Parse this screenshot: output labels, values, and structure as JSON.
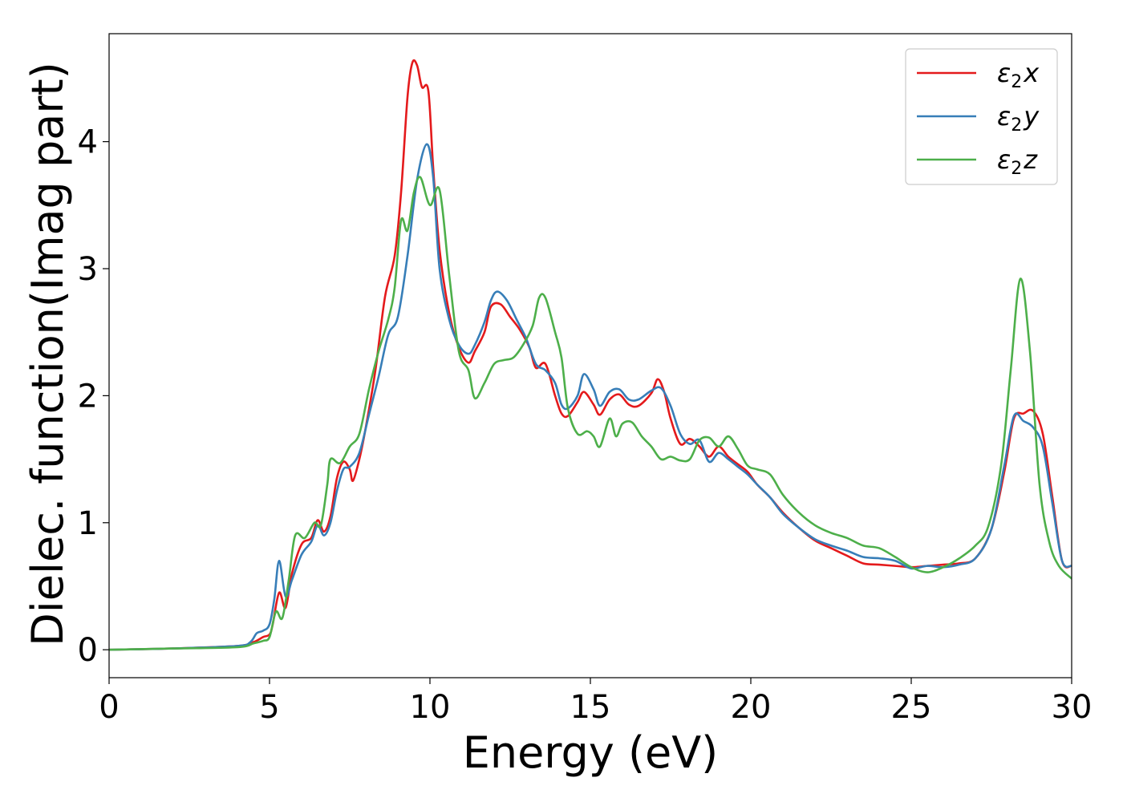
{
  "chart_data": {
    "type": "line",
    "xlabel": "Energy (eV)",
    "ylabel": "Dielec. function(Imag part)",
    "xlim": [
      0,
      30
    ],
    "ylim": [
      -0.22,
      4.85
    ],
    "x_ticks": [
      0,
      5,
      10,
      15,
      20,
      25,
      30
    ],
    "y_ticks": [
      0,
      1,
      2,
      3,
      4
    ],
    "grid": false,
    "legend_position": "top-right",
    "colors": {
      "x": "#e41a1c",
      "y": "#377eb8",
      "z": "#4daf4a"
    },
    "series": [
      {
        "name_symbol": "ε",
        "name_sub": "2",
        "name_suffix": "x",
        "color": "#e41a1c",
        "points": [
          [
            0,
            0
          ],
          [
            2,
            0.01
          ],
          [
            4,
            0.03
          ],
          [
            4.5,
            0.06
          ],
          [
            4.8,
            0.1
          ],
          [
            5.0,
            0.12
          ],
          [
            5.1,
            0.2
          ],
          [
            5.3,
            0.45
          ],
          [
            5.5,
            0.33
          ],
          [
            5.7,
            0.6
          ],
          [
            6.0,
            0.83
          ],
          [
            6.3,
            0.88
          ],
          [
            6.5,
            1.02
          ],
          [
            6.7,
            0.93
          ],
          [
            6.9,
            1.05
          ],
          [
            7.1,
            1.35
          ],
          [
            7.3,
            1.48
          ],
          [
            7.5,
            1.42
          ],
          [
            7.6,
            1.33
          ],
          [
            7.8,
            1.5
          ],
          [
            8.0,
            1.75
          ],
          [
            8.3,
            2.2
          ],
          [
            8.6,
            2.78
          ],
          [
            8.9,
            3.1
          ],
          [
            9.1,
            3.6
          ],
          [
            9.3,
            4.35
          ],
          [
            9.45,
            4.62
          ],
          [
            9.6,
            4.6
          ],
          [
            9.75,
            4.43
          ],
          [
            9.95,
            4.4
          ],
          [
            10.1,
            3.8
          ],
          [
            10.3,
            3.15
          ],
          [
            10.6,
            2.65
          ],
          [
            10.9,
            2.38
          ],
          [
            11.2,
            2.26
          ],
          [
            11.4,
            2.35
          ],
          [
            11.7,
            2.5
          ],
          [
            11.9,
            2.7
          ],
          [
            12.2,
            2.72
          ],
          [
            12.5,
            2.62
          ],
          [
            12.8,
            2.52
          ],
          [
            13.1,
            2.38
          ],
          [
            13.3,
            2.22
          ],
          [
            13.6,
            2.25
          ],
          [
            13.9,
            2.0
          ],
          [
            14.1,
            1.86
          ],
          [
            14.3,
            1.84
          ],
          [
            14.6,
            1.95
          ],
          [
            14.8,
            2.03
          ],
          [
            15.1,
            1.93
          ],
          [
            15.3,
            1.85
          ],
          [
            15.6,
            1.97
          ],
          [
            15.9,
            2.01
          ],
          [
            16.2,
            1.93
          ],
          [
            16.5,
            1.92
          ],
          [
            16.9,
            2.02
          ],
          [
            17.1,
            2.13
          ],
          [
            17.3,
            2.03
          ],
          [
            17.5,
            1.82
          ],
          [
            17.8,
            1.62
          ],
          [
            18.1,
            1.66
          ],
          [
            18.4,
            1.6
          ],
          [
            18.7,
            1.52
          ],
          [
            19.0,
            1.6
          ],
          [
            19.3,
            1.52
          ],
          [
            19.6,
            1.46
          ],
          [
            19.9,
            1.4
          ],
          [
            20.2,
            1.3
          ],
          [
            20.6,
            1.2
          ],
          [
            21.0,
            1.08
          ],
          [
            21.5,
            0.96
          ],
          [
            22.0,
            0.86
          ],
          [
            22.5,
            0.8
          ],
          [
            23.0,
            0.74
          ],
          [
            23.5,
            0.68
          ],
          [
            24.0,
            0.67
          ],
          [
            24.5,
            0.66
          ],
          [
            25.0,
            0.65
          ],
          [
            25.5,
            0.66
          ],
          [
            26.0,
            0.67
          ],
          [
            26.5,
            0.68
          ],
          [
            27.0,
            0.72
          ],
          [
            27.5,
            0.95
          ],
          [
            27.9,
            1.4
          ],
          [
            28.2,
            1.82
          ],
          [
            28.5,
            1.86
          ],
          [
            28.8,
            1.88
          ],
          [
            29.1,
            1.7
          ],
          [
            29.4,
            1.2
          ],
          [
            29.7,
            0.7
          ],
          [
            30.0,
            0.66
          ]
        ]
      },
      {
        "name_symbol": "ε",
        "name_sub": "2",
        "name_suffix": "y",
        "color": "#377eb8",
        "points": [
          [
            0,
            0
          ],
          [
            2,
            0.01
          ],
          [
            4,
            0.03
          ],
          [
            4.4,
            0.06
          ],
          [
            4.6,
            0.13
          ],
          [
            4.8,
            0.15
          ],
          [
            5.0,
            0.2
          ],
          [
            5.15,
            0.4
          ],
          [
            5.3,
            0.7
          ],
          [
            5.5,
            0.42
          ],
          [
            5.7,
            0.55
          ],
          [
            6.0,
            0.75
          ],
          [
            6.3,
            0.85
          ],
          [
            6.5,
            0.98
          ],
          [
            6.7,
            0.9
          ],
          [
            6.9,
            1.0
          ],
          [
            7.1,
            1.25
          ],
          [
            7.3,
            1.42
          ],
          [
            7.5,
            1.44
          ],
          [
            7.8,
            1.55
          ],
          [
            8.1,
            1.85
          ],
          [
            8.4,
            2.15
          ],
          [
            8.7,
            2.48
          ],
          [
            9.0,
            2.62
          ],
          [
            9.3,
            3.1
          ],
          [
            9.6,
            3.7
          ],
          [
            9.9,
            3.98
          ],
          [
            10.1,
            3.72
          ],
          [
            10.3,
            3.0
          ],
          [
            10.6,
            2.6
          ],
          [
            10.9,
            2.4
          ],
          [
            11.2,
            2.33
          ],
          [
            11.4,
            2.4
          ],
          [
            11.7,
            2.58
          ],
          [
            11.9,
            2.75
          ],
          [
            12.1,
            2.82
          ],
          [
            12.4,
            2.75
          ],
          [
            12.7,
            2.6
          ],
          [
            13.0,
            2.45
          ],
          [
            13.3,
            2.25
          ],
          [
            13.6,
            2.2
          ],
          [
            13.9,
            2.1
          ],
          [
            14.1,
            1.93
          ],
          [
            14.3,
            1.9
          ],
          [
            14.6,
            2.0
          ],
          [
            14.8,
            2.17
          ],
          [
            15.1,
            2.05
          ],
          [
            15.3,
            1.92
          ],
          [
            15.6,
            2.03
          ],
          [
            15.9,
            2.05
          ],
          [
            16.2,
            1.97
          ],
          [
            16.5,
            1.97
          ],
          [
            16.9,
            2.04
          ],
          [
            17.2,
            2.06
          ],
          [
            17.5,
            1.92
          ],
          [
            17.8,
            1.7
          ],
          [
            18.1,
            1.62
          ],
          [
            18.4,
            1.65
          ],
          [
            18.7,
            1.48
          ],
          [
            19.0,
            1.55
          ],
          [
            19.3,
            1.5
          ],
          [
            19.6,
            1.44
          ],
          [
            19.9,
            1.38
          ],
          [
            20.2,
            1.3
          ],
          [
            20.6,
            1.2
          ],
          [
            21.0,
            1.07
          ],
          [
            21.5,
            0.96
          ],
          [
            22.0,
            0.87
          ],
          [
            22.5,
            0.82
          ],
          [
            23.0,
            0.78
          ],
          [
            23.5,
            0.73
          ],
          [
            24.0,
            0.72
          ],
          [
            24.5,
            0.7
          ],
          [
            25.0,
            0.64
          ],
          [
            25.5,
            0.66
          ],
          [
            26.0,
            0.65
          ],
          [
            26.5,
            0.67
          ],
          [
            27.0,
            0.72
          ],
          [
            27.5,
            0.95
          ],
          [
            27.9,
            1.45
          ],
          [
            28.2,
            1.84
          ],
          [
            28.5,
            1.8
          ],
          [
            28.8,
            1.75
          ],
          [
            29.1,
            1.6
          ],
          [
            29.4,
            1.15
          ],
          [
            29.7,
            0.7
          ],
          [
            30.0,
            0.66
          ]
        ]
      },
      {
        "name_symbol": "ε",
        "name_sub": "2",
        "name_suffix": "z",
        "color": "#4daf4a",
        "points": [
          [
            0,
            0
          ],
          [
            2,
            0.01
          ],
          [
            4,
            0.02
          ],
          [
            4.5,
            0.05
          ],
          [
            4.8,
            0.07
          ],
          [
            5.0,
            0.1
          ],
          [
            5.2,
            0.3
          ],
          [
            5.4,
            0.25
          ],
          [
            5.6,
            0.55
          ],
          [
            5.8,
            0.9
          ],
          [
            6.1,
            0.88
          ],
          [
            6.4,
            1.0
          ],
          [
            6.6,
            0.98
          ],
          [
            6.8,
            1.3
          ],
          [
            6.9,
            1.5
          ],
          [
            7.2,
            1.47
          ],
          [
            7.5,
            1.6
          ],
          [
            7.8,
            1.7
          ],
          [
            8.1,
            2.05
          ],
          [
            8.4,
            2.35
          ],
          [
            8.7,
            2.6
          ],
          [
            8.9,
            2.85
          ],
          [
            9.1,
            3.38
          ],
          [
            9.3,
            3.3
          ],
          [
            9.5,
            3.6
          ],
          [
            9.7,
            3.72
          ],
          [
            10.0,
            3.5
          ],
          [
            10.3,
            3.62
          ],
          [
            10.6,
            2.95
          ],
          [
            10.9,
            2.35
          ],
          [
            11.2,
            2.2
          ],
          [
            11.4,
            1.98
          ],
          [
            11.7,
            2.1
          ],
          [
            12.0,
            2.25
          ],
          [
            12.3,
            2.28
          ],
          [
            12.6,
            2.3
          ],
          [
            12.9,
            2.4
          ],
          [
            13.2,
            2.55
          ],
          [
            13.4,
            2.77
          ],
          [
            13.6,
            2.77
          ],
          [
            13.9,
            2.5
          ],
          [
            14.1,
            2.3
          ],
          [
            14.3,
            1.9
          ],
          [
            14.6,
            1.7
          ],
          [
            14.9,
            1.72
          ],
          [
            15.1,
            1.68
          ],
          [
            15.3,
            1.6
          ],
          [
            15.6,
            1.82
          ],
          [
            15.8,
            1.68
          ],
          [
            16.0,
            1.78
          ],
          [
            16.3,
            1.79
          ],
          [
            16.6,
            1.68
          ],
          [
            16.9,
            1.6
          ],
          [
            17.2,
            1.5
          ],
          [
            17.5,
            1.52
          ],
          [
            17.8,
            1.49
          ],
          [
            18.1,
            1.5
          ],
          [
            18.4,
            1.65
          ],
          [
            18.7,
            1.67
          ],
          [
            19.0,
            1.6
          ],
          [
            19.3,
            1.68
          ],
          [
            19.6,
            1.58
          ],
          [
            19.9,
            1.45
          ],
          [
            20.2,
            1.42
          ],
          [
            20.6,
            1.38
          ],
          [
            21.0,
            1.22
          ],
          [
            21.5,
            1.08
          ],
          [
            22.0,
            0.98
          ],
          [
            22.5,
            0.92
          ],
          [
            23.0,
            0.88
          ],
          [
            23.5,
            0.82
          ],
          [
            24.0,
            0.8
          ],
          [
            24.5,
            0.73
          ],
          [
            25.0,
            0.65
          ],
          [
            25.5,
            0.61
          ],
          [
            26.0,
            0.65
          ],
          [
            26.5,
            0.72
          ],
          [
            27.0,
            0.82
          ],
          [
            27.4,
            0.97
          ],
          [
            27.8,
            1.45
          ],
          [
            28.1,
            2.2
          ],
          [
            28.4,
            2.92
          ],
          [
            28.7,
            2.35
          ],
          [
            29.0,
            1.3
          ],
          [
            29.3,
            0.85
          ],
          [
            29.6,
            0.66
          ],
          [
            30.0,
            0.56
          ]
        ]
      }
    ]
  }
}
